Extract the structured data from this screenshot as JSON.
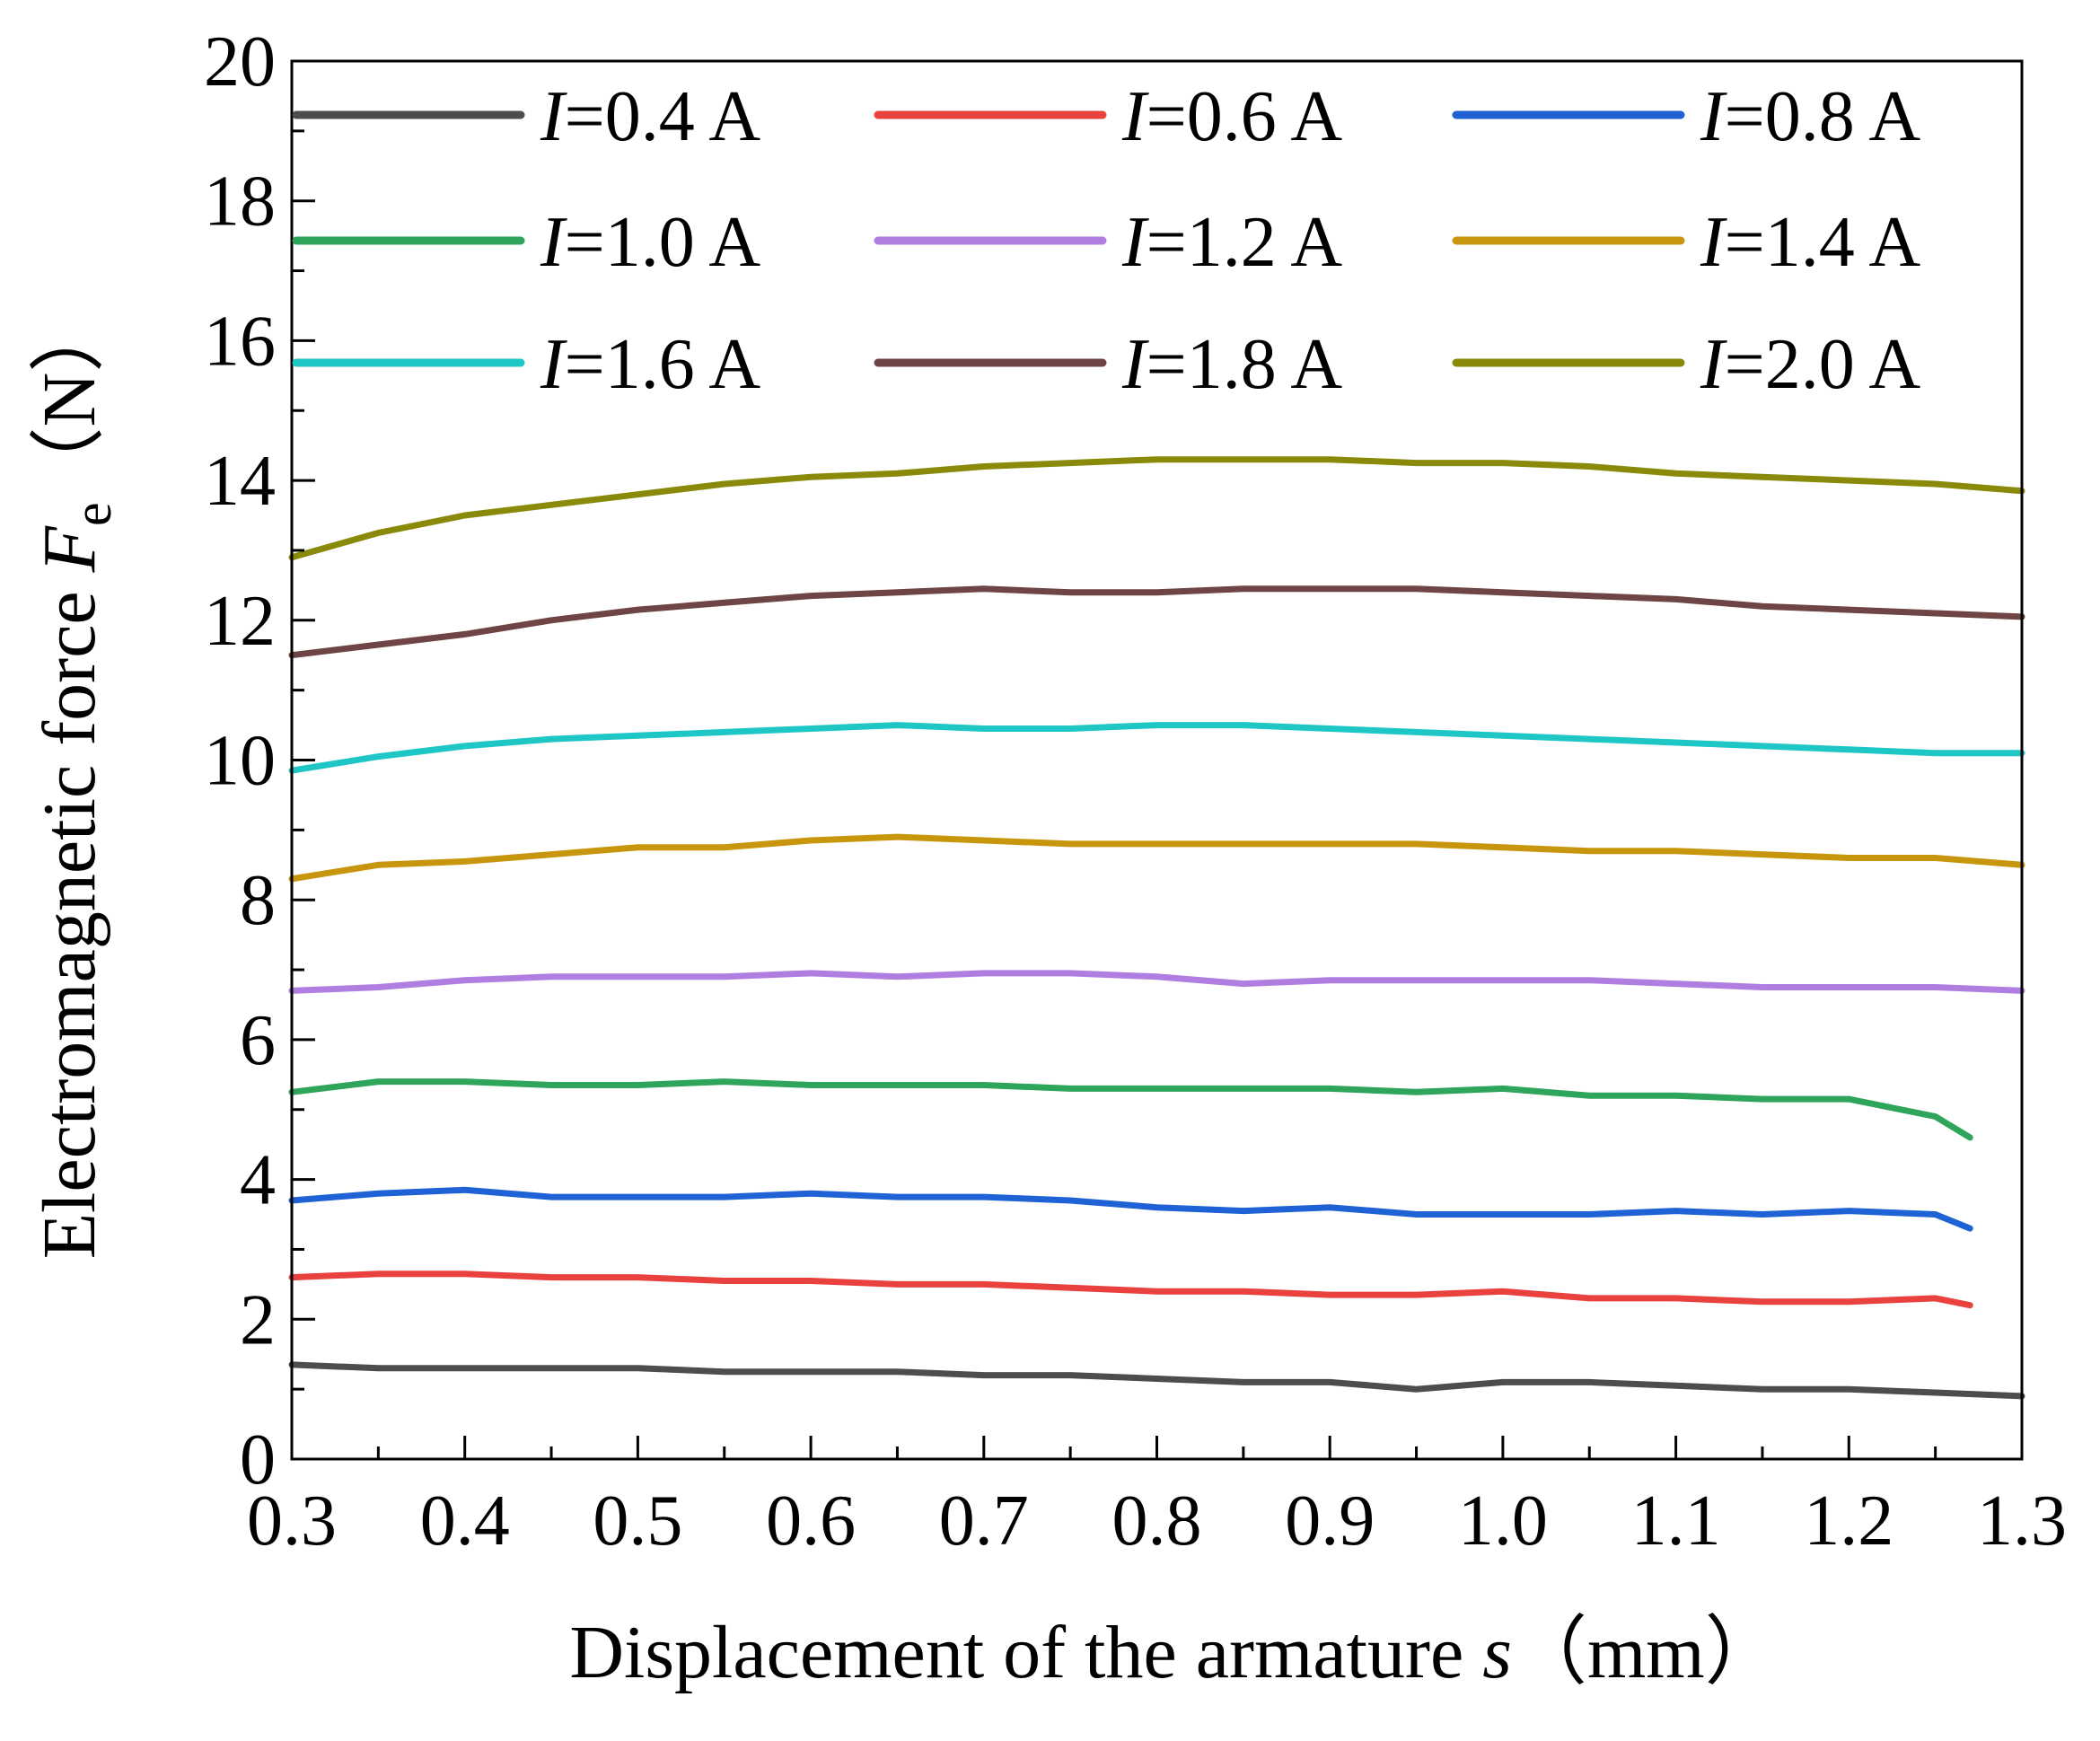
{
  "chart_data": {
    "type": "line",
    "xlabel": {
      "prefix": "Displacement of the armature ",
      "var": "s",
      "unit": "（mm）"
    },
    "ylabel": {
      "prefix": "Electromagnetic force ",
      "var": "F",
      "sub": "e",
      "unit": "（N）"
    },
    "xlim": [
      0.3,
      1.3
    ],
    "ylim": [
      0,
      20
    ],
    "xticks": [
      "0.3",
      "0.4",
      "0.5",
      "0.6",
      "0.7",
      "0.8",
      "0.9",
      "1.0",
      "1.1",
      "1.2",
      "1.3"
    ],
    "yticks": [
      "0",
      "2",
      "4",
      "6",
      "8",
      "10",
      "12",
      "14",
      "16",
      "18",
      "20"
    ],
    "legend_placement": "top",
    "series": [
      {
        "name_var": "I",
        "name_rest": "=0.4 A",
        "color": "#4d4d4d",
        "x": [
          0.3,
          0.35,
          0.4,
          0.45,
          0.5,
          0.55,
          0.6,
          0.65,
          0.7,
          0.75,
          0.8,
          0.85,
          0.9,
          0.95,
          1.0,
          1.05,
          1.1,
          1.15,
          1.2,
          1.25,
          1.3
        ],
        "y": [
          1.35,
          1.3,
          1.3,
          1.3,
          1.3,
          1.25,
          1.25,
          1.25,
          1.2,
          1.2,
          1.15,
          1.1,
          1.1,
          1.0,
          1.1,
          1.1,
          1.05,
          1.0,
          1.0,
          0.95,
          0.9
        ]
      },
      {
        "name_var": "I",
        "name_rest": "=0.6 A",
        "color": "#e8413e",
        "x": [
          0.3,
          0.35,
          0.4,
          0.45,
          0.5,
          0.55,
          0.6,
          0.65,
          0.7,
          0.75,
          0.8,
          0.85,
          0.9,
          0.95,
          1.0,
          1.05,
          1.1,
          1.15,
          1.2,
          1.25,
          1.27
        ],
        "y": [
          2.6,
          2.65,
          2.65,
          2.6,
          2.6,
          2.55,
          2.55,
          2.5,
          2.5,
          2.45,
          2.4,
          2.4,
          2.35,
          2.35,
          2.4,
          2.3,
          2.3,
          2.25,
          2.25,
          2.3,
          2.2
        ]
      },
      {
        "name_var": "I",
        "name_rest": "=0.8 A",
        "color": "#1f62d6",
        "x": [
          0.3,
          0.35,
          0.4,
          0.45,
          0.5,
          0.55,
          0.6,
          0.65,
          0.7,
          0.75,
          0.8,
          0.85,
          0.9,
          0.95,
          1.0,
          1.05,
          1.1,
          1.15,
          1.2,
          1.25,
          1.27
        ],
        "y": [
          3.7,
          3.8,
          3.85,
          3.75,
          3.75,
          3.75,
          3.8,
          3.75,
          3.75,
          3.7,
          3.6,
          3.55,
          3.6,
          3.5,
          3.5,
          3.5,
          3.55,
          3.5,
          3.55,
          3.5,
          3.3
        ]
      },
      {
        "name_var": "I",
        "name_rest": "=1.0 A",
        "color": "#2ea55a",
        "x": [
          0.3,
          0.35,
          0.4,
          0.45,
          0.5,
          0.55,
          0.6,
          0.65,
          0.7,
          0.75,
          0.8,
          0.85,
          0.9,
          0.95,
          1.0,
          1.05,
          1.1,
          1.15,
          1.2,
          1.25,
          1.27
        ],
        "y": [
          5.25,
          5.4,
          5.4,
          5.35,
          5.35,
          5.4,
          5.35,
          5.35,
          5.35,
          5.3,
          5.3,
          5.3,
          5.3,
          5.25,
          5.3,
          5.2,
          5.2,
          5.15,
          5.15,
          4.9,
          4.6
        ]
      },
      {
        "name_var": "I",
        "name_rest": "=1.2 A",
        "color": "#b07ee0",
        "x": [
          0.3,
          0.35,
          0.4,
          0.45,
          0.5,
          0.55,
          0.6,
          0.65,
          0.7,
          0.75,
          0.8,
          0.85,
          0.9,
          0.95,
          1.0,
          1.05,
          1.1,
          1.15,
          1.2,
          1.25,
          1.3
        ],
        "y": [
          6.7,
          6.75,
          6.85,
          6.9,
          6.9,
          6.9,
          6.95,
          6.9,
          6.95,
          6.95,
          6.9,
          6.8,
          6.85,
          6.85,
          6.85,
          6.85,
          6.8,
          6.75,
          6.75,
          6.75,
          6.7
        ]
      },
      {
        "name_var": "I",
        "name_rest": "=1.4 A",
        "color": "#c8960c",
        "x": [
          0.3,
          0.35,
          0.4,
          0.45,
          0.5,
          0.55,
          0.6,
          0.65,
          0.7,
          0.75,
          0.8,
          0.85,
          0.9,
          0.95,
          1.0,
          1.05,
          1.1,
          1.15,
          1.2,
          1.25,
          1.3
        ],
        "y": [
          8.3,
          8.5,
          8.55,
          8.65,
          8.75,
          8.75,
          8.85,
          8.9,
          8.85,
          8.8,
          8.8,
          8.8,
          8.8,
          8.8,
          8.75,
          8.7,
          8.7,
          8.65,
          8.6,
          8.6,
          8.5
        ]
      },
      {
        "name_var": "I",
        "name_rest": "=1.6 A",
        "color": "#1fc6c6",
        "x": [
          0.3,
          0.35,
          0.4,
          0.45,
          0.5,
          0.55,
          0.6,
          0.65,
          0.7,
          0.75,
          0.8,
          0.85,
          0.9,
          0.95,
          1.0,
          1.05,
          1.1,
          1.15,
          1.2,
          1.25,
          1.3
        ],
        "y": [
          9.85,
          10.05,
          10.2,
          10.3,
          10.35,
          10.4,
          10.45,
          10.5,
          10.45,
          10.45,
          10.5,
          10.5,
          10.45,
          10.4,
          10.35,
          10.3,
          10.25,
          10.2,
          10.15,
          10.1,
          10.1
        ]
      },
      {
        "name_var": "I",
        "name_rest": "=1.8 A",
        "color": "#6e4444",
        "x": [
          0.3,
          0.35,
          0.4,
          0.45,
          0.5,
          0.55,
          0.6,
          0.65,
          0.7,
          0.75,
          0.8,
          0.85,
          0.9,
          0.95,
          1.0,
          1.05,
          1.1,
          1.15,
          1.2,
          1.25,
          1.3
        ],
        "y": [
          11.5,
          11.65,
          11.8,
          12.0,
          12.15,
          12.25,
          12.35,
          12.4,
          12.45,
          12.4,
          12.4,
          12.45,
          12.45,
          12.45,
          12.4,
          12.35,
          12.3,
          12.2,
          12.15,
          12.1,
          12.05
        ]
      },
      {
        "name_var": "I",
        "name_rest": "=2.0 A",
        "color": "#8a8a0a",
        "x": [
          0.3,
          0.35,
          0.4,
          0.45,
          0.5,
          0.55,
          0.6,
          0.65,
          0.7,
          0.75,
          0.8,
          0.85,
          0.9,
          0.95,
          1.0,
          1.05,
          1.1,
          1.15,
          1.2,
          1.25,
          1.3
        ],
        "y": [
          12.9,
          13.25,
          13.5,
          13.65,
          13.8,
          13.95,
          14.05,
          14.1,
          14.2,
          14.25,
          14.3,
          14.3,
          14.3,
          14.25,
          14.25,
          14.2,
          14.1,
          14.05,
          14.0,
          13.95,
          13.85
        ]
      }
    ]
  }
}
